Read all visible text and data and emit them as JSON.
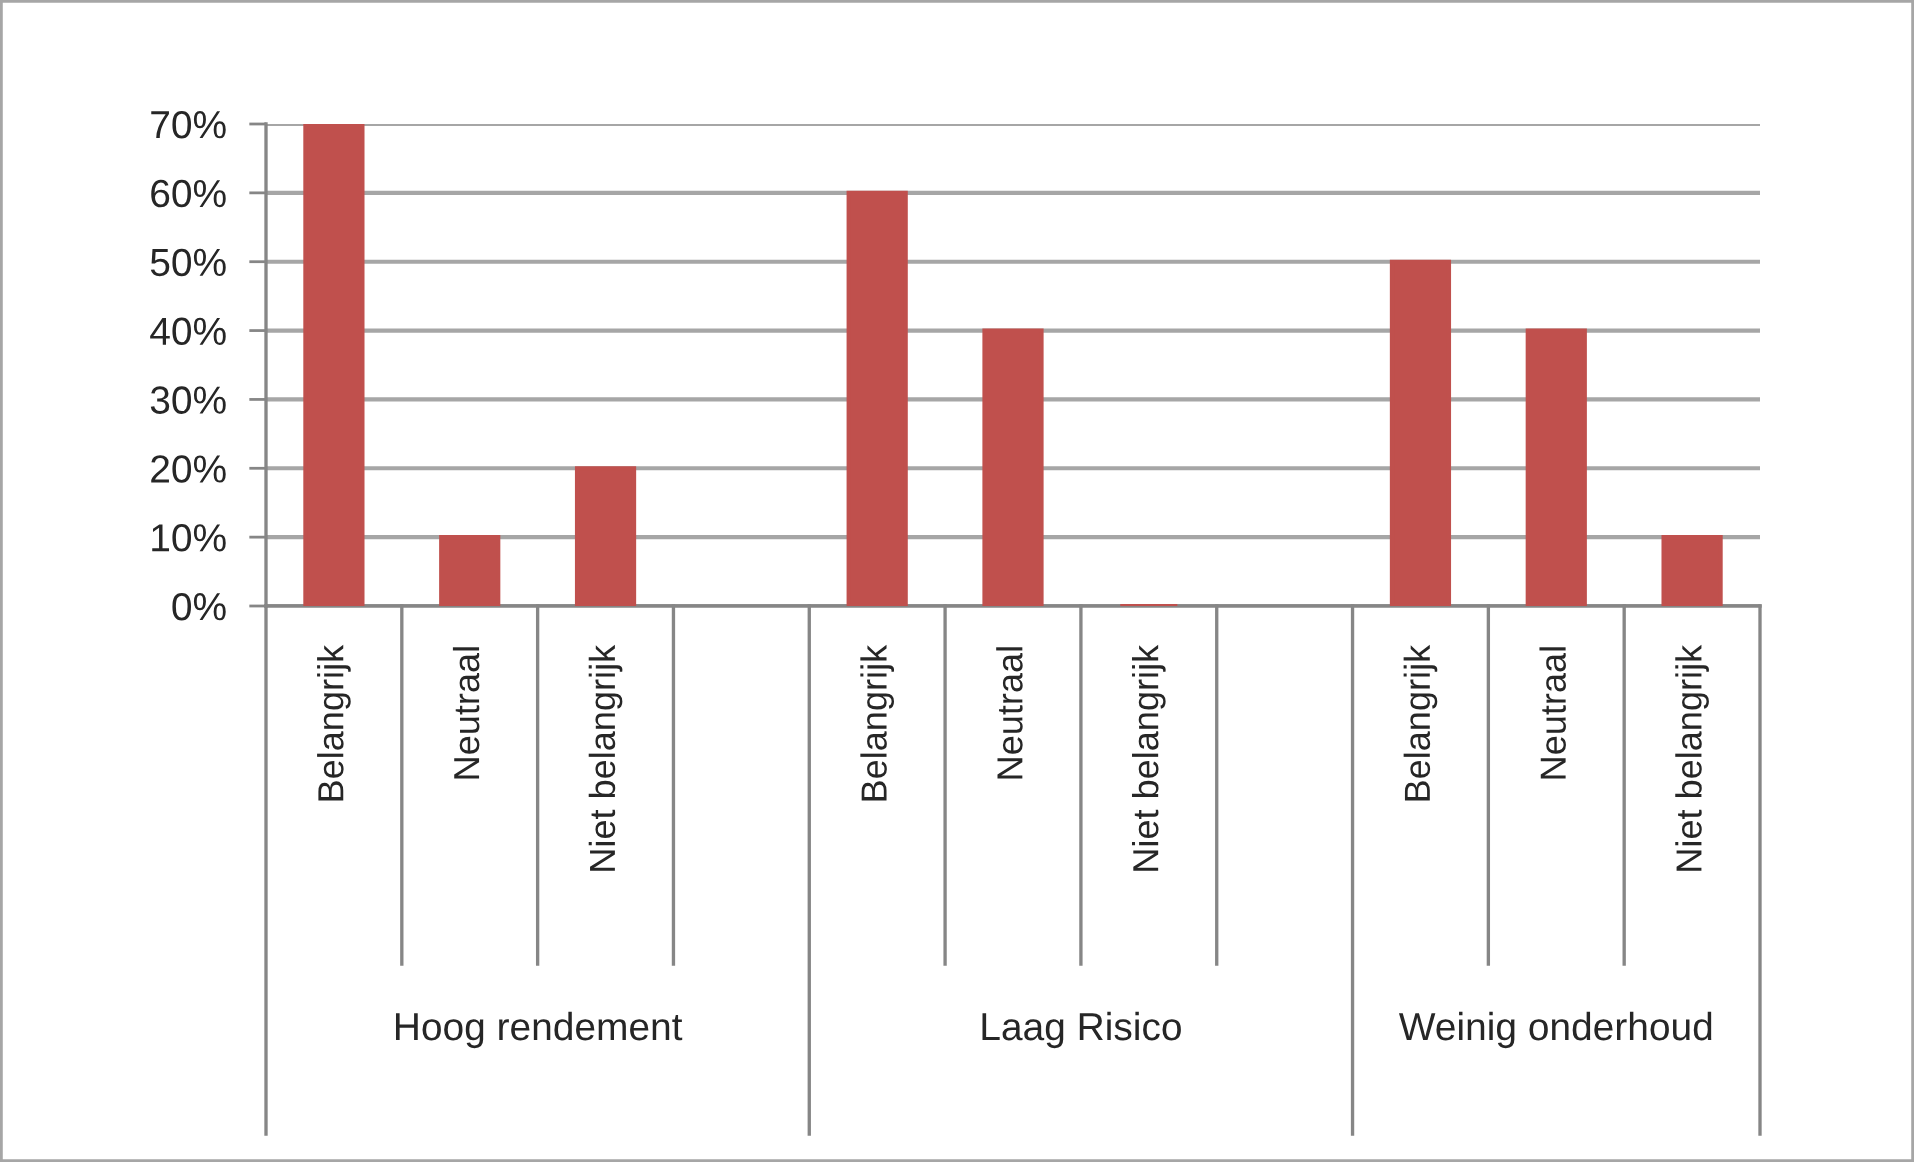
{
  "chart_data": {
    "type": "bar",
    "categories": [
      "Belangrijk",
      "Neutraal",
      "Niet belangrijk",
      null,
      "Belangrijk",
      "Neutraal",
      "Niet belangrijk",
      null,
      "Belangrijk",
      "Neutraal",
      "Niet belangrijk"
    ],
    "values": [
      70,
      10,
      20,
      null,
      60,
      40,
      0,
      null,
      50,
      40,
      10
    ],
    "color": "#c0504d",
    "ylim": [
      0,
      70
    ],
    "yticks": [
      {
        "value": 0,
        "label": "0%"
      },
      {
        "value": 10,
        "label": "10%"
      },
      {
        "value": 20,
        "label": "20%"
      },
      {
        "value": 30,
        "label": "30%"
      },
      {
        "value": 40,
        "label": "40%"
      },
      {
        "value": 50,
        "label": "50%"
      },
      {
        "value": 60,
        "label": "60%"
      },
      {
        "value": 70,
        "label": "70%"
      }
    ],
    "grid": "y",
    "annotations": [
      "Hoog rendement",
      "Laag Risico",
      "Weinig onderhoud"
    ]
  }
}
